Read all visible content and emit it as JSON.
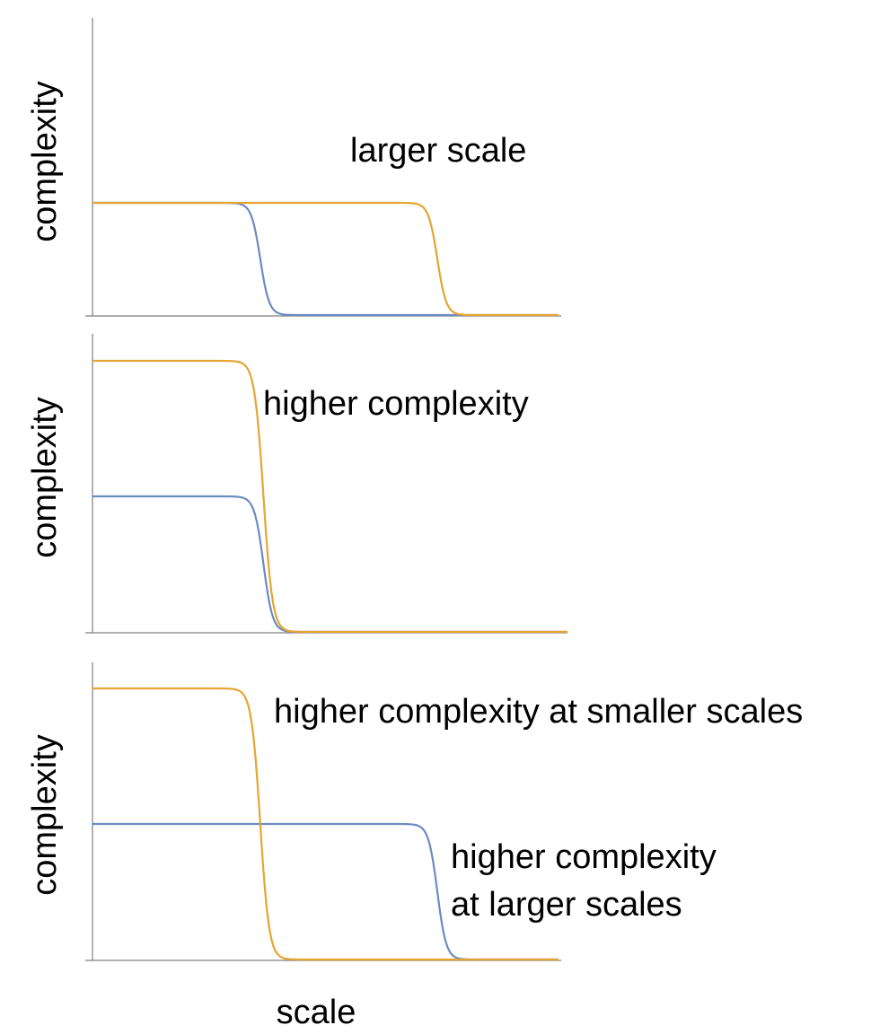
{
  "chart_data": [
    {
      "type": "line",
      "title": "",
      "xlabel": "",
      "ylabel": "complexity",
      "xlim": [
        0,
        1
      ],
      "ylim": [
        0,
        1
      ],
      "grid": false,
      "annotations": [
        {
          "text": "larger scale"
        }
      ],
      "series": [
        {
          "name": "blue",
          "color": "#6a8cc0",
          "level": 0.5,
          "drop_center": 0.36,
          "drop_width": 0.04
        },
        {
          "name": "orange",
          "color": "#e5a532",
          "level": 0.5,
          "drop_center": 0.74,
          "drop_width": 0.04
        }
      ]
    },
    {
      "type": "line",
      "title": "",
      "xlabel": "",
      "ylabel": "complexity",
      "xlim": [
        0,
        1
      ],
      "ylim": [
        0,
        1
      ],
      "grid": false,
      "annotations": [
        {
          "text": "higher complexity"
        }
      ],
      "series": [
        {
          "name": "blue",
          "color": "#6a8cc0",
          "level": 0.5,
          "drop_center": 0.36,
          "drop_width": 0.04
        },
        {
          "name": "orange",
          "color": "#e5a532",
          "level": 1.0,
          "drop_center": 0.36,
          "drop_width": 0.04
        }
      ]
    },
    {
      "type": "line",
      "title": "",
      "xlabel": "scale",
      "ylabel": "complexity",
      "xlim": [
        0,
        1
      ],
      "ylim": [
        0,
        1
      ],
      "grid": false,
      "annotations": [
        {
          "text": "higher complexity at smaller scales"
        },
        {
          "text": "higher complexity",
          "text2": "at larger scales"
        }
      ],
      "series": [
        {
          "name": "blue",
          "color": "#6a8cc0",
          "level": 0.5,
          "drop_center": 0.74,
          "drop_width": 0.04
        },
        {
          "name": "orange",
          "color": "#e5a532",
          "level": 1.0,
          "drop_center": 0.36,
          "drop_width": 0.04
        }
      ]
    }
  ]
}
